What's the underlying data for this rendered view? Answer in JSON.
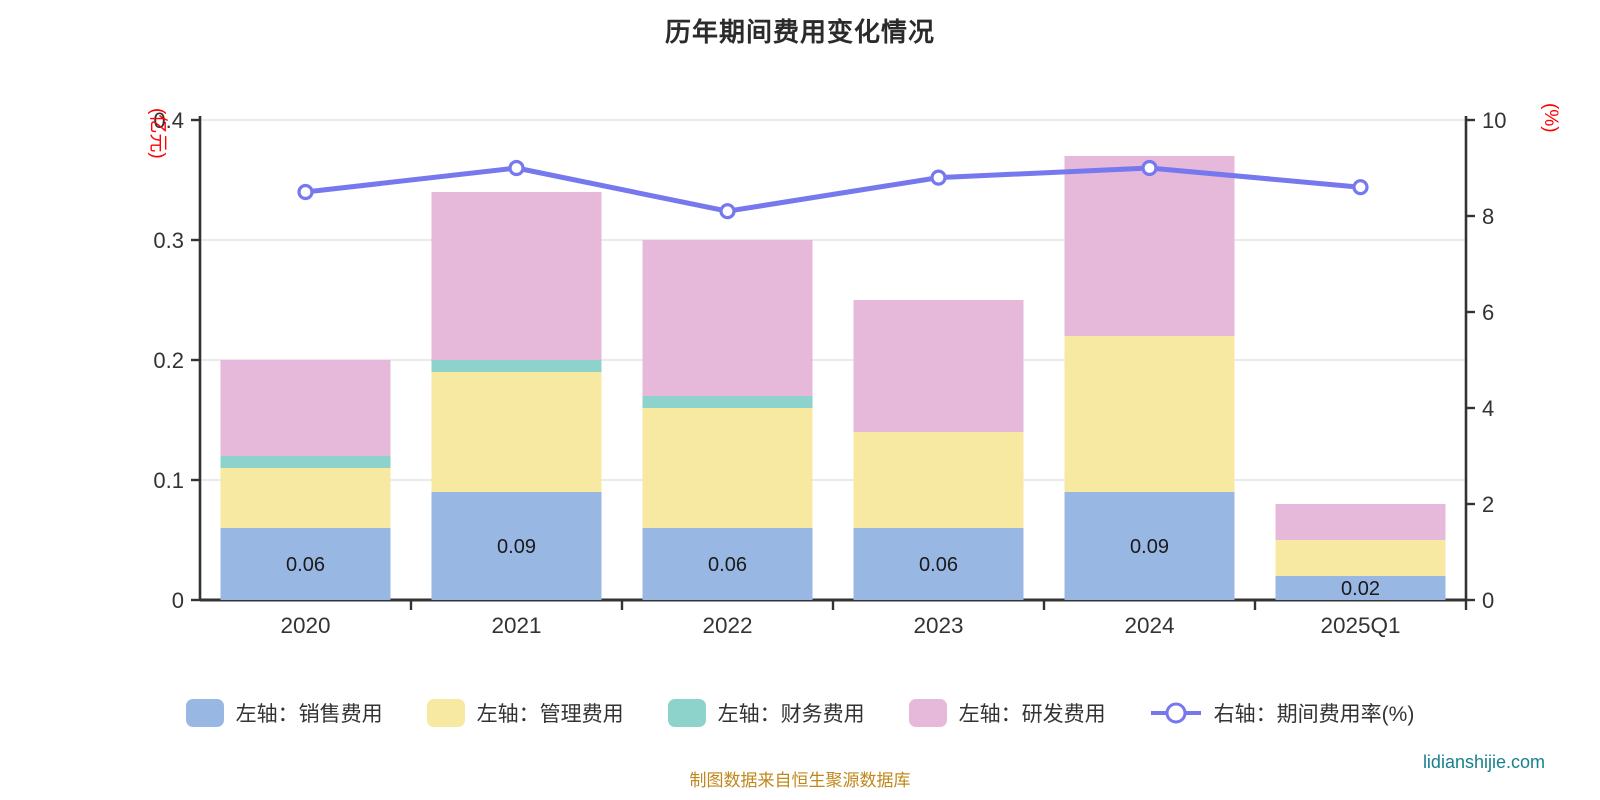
{
  "page": {
    "title": "历年期间费用变化情况",
    "footer_note": "制图数据来自恒生聚源数据库",
    "watermark": "lidianshijie.com"
  },
  "chart_data": {
    "type": "bar",
    "subtype": "stacked-bar-with-line",
    "title": "历年期间费用变化情况",
    "categories": [
      "2020",
      "2021",
      "2022",
      "2023",
      "2024",
      "2025Q1"
    ],
    "stacked": true,
    "grid": true,
    "legend_position": "bottom",
    "series": [
      {
        "key": "sales-expense",
        "name": "左轴：销售费用",
        "axis": "left",
        "color": "#99b7e3",
        "values": [
          0.06,
          0.09,
          0.06,
          0.06,
          0.09,
          0.02
        ]
      },
      {
        "key": "admin-expense",
        "name": "左轴：管理费用",
        "axis": "left",
        "color": "#f8e9a2",
        "values": [
          0.05,
          0.1,
          0.1,
          0.08,
          0.13,
          0.03
        ]
      },
      {
        "key": "finance-expense",
        "name": "左轴：财务费用",
        "axis": "left",
        "color": "#8ed3cb",
        "values": [
          0.01,
          0.01,
          0.01,
          0,
          0,
          0
        ]
      },
      {
        "key": "rd-expense",
        "name": "左轴：研发费用",
        "axis": "left",
        "color": "#e6b8da",
        "values": [
          0.08,
          0.14,
          0.13,
          0.11,
          0.15,
          0.03
        ]
      }
    ],
    "line_series": {
      "key": "expense-ratio",
      "name": "右轴：期间费用率(%)",
      "axis": "right",
      "color": "#7678ee",
      "values": [
        8.5,
        9.0,
        8.1,
        8.8,
        9.0,
        8.6
      ]
    },
    "bar_labels": [
      "0.06",
      "0.09",
      "0.06",
      "0.06",
      "0.09",
      "0.02"
    ],
    "bar_totals": [
      0.2,
      0.34,
      0.3,
      0.25,
      0.37,
      0.08
    ],
    "left_axis": {
      "label": "(亿元)",
      "label_color": "#ff0000",
      "min": 0,
      "max": 0.4,
      "ticks": [
        "0",
        "0.1",
        "0.2",
        "0.3",
        "0.4"
      ]
    },
    "right_axis": {
      "label": "(%)",
      "label_color": "#ff0000",
      "min": 0,
      "max": 10,
      "ticks": [
        "0",
        "2",
        "4",
        "6",
        "8",
        "10"
      ]
    },
    "axis_color": "#333333",
    "gridline_color": "#e4e4e4"
  }
}
